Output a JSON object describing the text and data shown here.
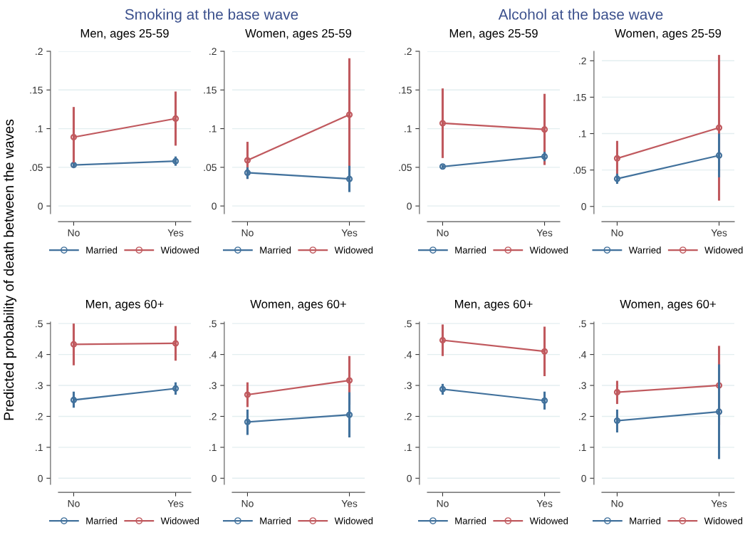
{
  "chart_data": [
    {
      "type": "line",
      "title": "Men, ages 25-59",
      "ylabel": "Predicted probability of death between the waves",
      "annotations": [
        "Smoking at the base wave"
      ],
      "categories": [
        "No",
        "Yes"
      ],
      "ylim": [
        -0.01,
        0.2
      ],
      "yticks": [
        0,
        {
          "value": 0.05,
          "label": ".05"
        },
        {
          "value": 0.1,
          "label": ".1"
        },
        {
          "value": 0.15,
          "label": ".15"
        },
        {
          "value": 0.2,
          "label": ".2"
        }
      ],
      "grid": "y",
      "legend": "bottom",
      "marker": "circle",
      "series": [
        {
          "name": "Married",
          "color": "#41719c",
          "values": [
            0.053,
            0.058
          ],
          "errors": [
            [
              0.05,
              0.056
            ],
            [
              0.052,
              0.064
            ]
          ]
        },
        {
          "name": "Widowed",
          "color": "#c0595e",
          "values": [
            0.089,
            0.113
          ],
          "errors": [
            [
              0.05,
              0.128
            ],
            [
              0.078,
              0.148
            ]
          ]
        }
      ]
    },
    {
      "type": "line",
      "title": "Women, ages 25-59",
      "categories": [
        "No",
        "Yes"
      ],
      "ylim": [
        -0.01,
        0.2
      ],
      "yticks": [
        0,
        {
          "value": 0.05,
          "label": ".05"
        },
        {
          "value": 0.1,
          "label": ".1"
        },
        {
          "value": 0.15,
          "label": ".15"
        },
        {
          "value": 0.2,
          "label": ".2"
        }
      ],
      "grid": "y",
      "legend": "bottom",
      "marker": "circle",
      "series": [
        {
          "name": "Married",
          "color": "#41719c",
          "values": [
            0.043,
            0.035
          ],
          "errors": [
            [
              0.035,
              0.05
            ],
            [
              0.018,
              0.052
            ]
          ]
        },
        {
          "name": "Widowed",
          "color": "#c0595e",
          "values": [
            0.059,
            0.118
          ],
          "errors": [
            [
              0.035,
              0.083
            ],
            [
              0.045,
              0.191
            ]
          ]
        }
      ]
    },
    {
      "type": "line",
      "title": "Men, ages 25-59",
      "annotations": [
        "Alcohol at the base wave"
      ],
      "categories": [
        "No",
        "Yes"
      ],
      "ylim": [
        -0.01,
        0.2
      ],
      "yticks": [
        0,
        {
          "value": 0.05,
          "label": ".05"
        },
        {
          "value": 0.1,
          "label": ".1"
        },
        {
          "value": 0.15,
          "label": ".15"
        },
        {
          "value": 0.2,
          "label": ".2"
        }
      ],
      "grid": "y",
      "legend": "bottom",
      "marker": "circle",
      "series": [
        {
          "name": "Married",
          "color": "#41719c",
          "values": [
            0.051,
            0.064
          ],
          "errors": [
            [
              0.049,
              0.053
            ],
            [
              0.058,
              0.07
            ]
          ]
        },
        {
          "name": "Widowed",
          "color": "#c0595e",
          "values": [
            0.107,
            0.099
          ],
          "errors": [
            [
              0.062,
              0.152
            ],
            [
              0.053,
              0.145
            ]
          ]
        }
      ]
    },
    {
      "type": "line",
      "title": "Women, ages 25-59",
      "categories": [
        "No",
        "Yes"
      ],
      "ylim": [
        -0.01,
        0.213
      ],
      "yticks": [
        0,
        {
          "value": 0.05,
          "label": ".05"
        },
        {
          "value": 0.1,
          "label": ".1"
        },
        {
          "value": 0.15,
          "label": ".15"
        },
        {
          "value": 0.2,
          "label": ".2"
        }
      ],
      "grid": "y",
      "legend": "bottom",
      "marker": "circle",
      "series": [
        {
          "name": "Warried",
          "color": "#41719c",
          "values": [
            0.038,
            0.07
          ],
          "errors": [
            [
              0.031,
              0.045
            ],
            [
              0.04,
              0.1
            ]
          ]
        },
        {
          "name": "Widowed",
          "color": "#c0595e",
          "values": [
            0.066,
            0.108
          ],
          "errors": [
            [
              0.042,
              0.09
            ],
            [
              0.008,
              0.208
            ]
          ]
        }
      ]
    },
    {
      "type": "line",
      "title": "Men, ages 60+",
      "categories": [
        "No",
        "Yes"
      ],
      "ylim": [
        -0.02,
        0.505
      ],
      "yticks": [
        0,
        {
          "value": 0.1,
          "label": ".1"
        },
        {
          "value": 0.2,
          "label": ".2"
        },
        {
          "value": 0.3,
          "label": ".3"
        },
        {
          "value": 0.4,
          "label": ".4"
        },
        {
          "value": 0.5,
          "label": ".5"
        }
      ],
      "grid": "y",
      "legend": "bottom",
      "marker": "circle",
      "series": [
        {
          "name": "Married",
          "color": "#41719c",
          "values": [
            0.253,
            0.29
          ],
          "errors": [
            [
              0.228,
              0.28
            ],
            [
              0.27,
              0.31
            ]
          ]
        },
        {
          "name": "Widowed",
          "color": "#c0595e",
          "values": [
            0.433,
            0.436
          ],
          "errors": [
            [
              0.365,
              0.5
            ],
            [
              0.38,
              0.492
            ]
          ]
        }
      ]
    },
    {
      "type": "line",
      "title": "Women, ages 60+",
      "categories": [
        "No",
        "Yes"
      ],
      "ylim": [
        -0.02,
        0.505
      ],
      "yticks": [
        0,
        {
          "value": 0.1,
          "label": ".1"
        },
        {
          "value": 0.2,
          "label": ".2"
        },
        {
          "value": 0.3,
          "label": ".3"
        },
        {
          "value": 0.4,
          "label": ".4"
        },
        {
          "value": 0.5,
          "label": ".5"
        }
      ],
      "grid": "y",
      "legend": "bottom",
      "marker": "circle",
      "series": [
        {
          "name": "Married",
          "color": "#41719c",
          "values": [
            0.182,
            0.205
          ],
          "errors": [
            [
              0.14,
              0.222
            ],
            [
              0.132,
              0.278
            ]
          ]
        },
        {
          "name": "Widowed",
          "color": "#c0595e",
          "values": [
            0.27,
            0.316
          ],
          "errors": [
            [
              0.23,
              0.31
            ],
            [
              0.237,
              0.395
            ]
          ]
        }
      ]
    },
    {
      "type": "line",
      "title": "Men, ages 60+",
      "categories": [
        "No",
        "Yes"
      ],
      "ylim": [
        -0.02,
        0.505
      ],
      "yticks": [
        0,
        {
          "value": 0.1,
          "label": ".1"
        },
        {
          "value": 0.2,
          "label": ".2"
        },
        {
          "value": 0.3,
          "label": ".3"
        },
        {
          "value": 0.4,
          "label": ".4"
        },
        {
          "value": 0.5,
          "label": ".5"
        }
      ],
      "grid": "y",
      "legend": "bottom",
      "marker": "circle",
      "series": [
        {
          "name": "Married",
          "color": "#41719c",
          "values": [
            0.288,
            0.251
          ],
          "errors": [
            [
              0.27,
              0.305
            ],
            [
              0.222,
              0.28
            ]
          ]
        },
        {
          "name": "Widowed",
          "color": "#c0595e",
          "values": [
            0.446,
            0.41
          ],
          "errors": [
            [
              0.395,
              0.497
            ],
            [
              0.33,
              0.49
            ]
          ]
        }
      ]
    },
    {
      "type": "line",
      "title": "Women, ages 60+",
      "categories": [
        "No",
        "Yes"
      ],
      "ylim": [
        -0.02,
        0.505
      ],
      "yticks": [
        0,
        {
          "value": 0.1,
          "label": ".1"
        },
        {
          "value": 0.2,
          "label": ".2"
        },
        {
          "value": 0.3,
          "label": ".3"
        },
        {
          "value": 0.4,
          "label": ".4"
        },
        {
          "value": 0.5,
          "label": ".5"
        }
      ],
      "grid": "y",
      "legend": "bottom",
      "marker": "circle",
      "series": [
        {
          "name": "Married",
          "color": "#41719c",
          "values": [
            0.186,
            0.215
          ],
          "errors": [
            [
              0.148,
              0.222
            ],
            [
              0.062,
              0.368
            ]
          ]
        },
        {
          "name": "Widowed",
          "color": "#c0595e",
          "values": [
            0.278,
            0.3
          ],
          "errors": [
            [
              0.24,
              0.315
            ],
            [
              0.172,
              0.428
            ]
          ]
        }
      ]
    }
  ]
}
